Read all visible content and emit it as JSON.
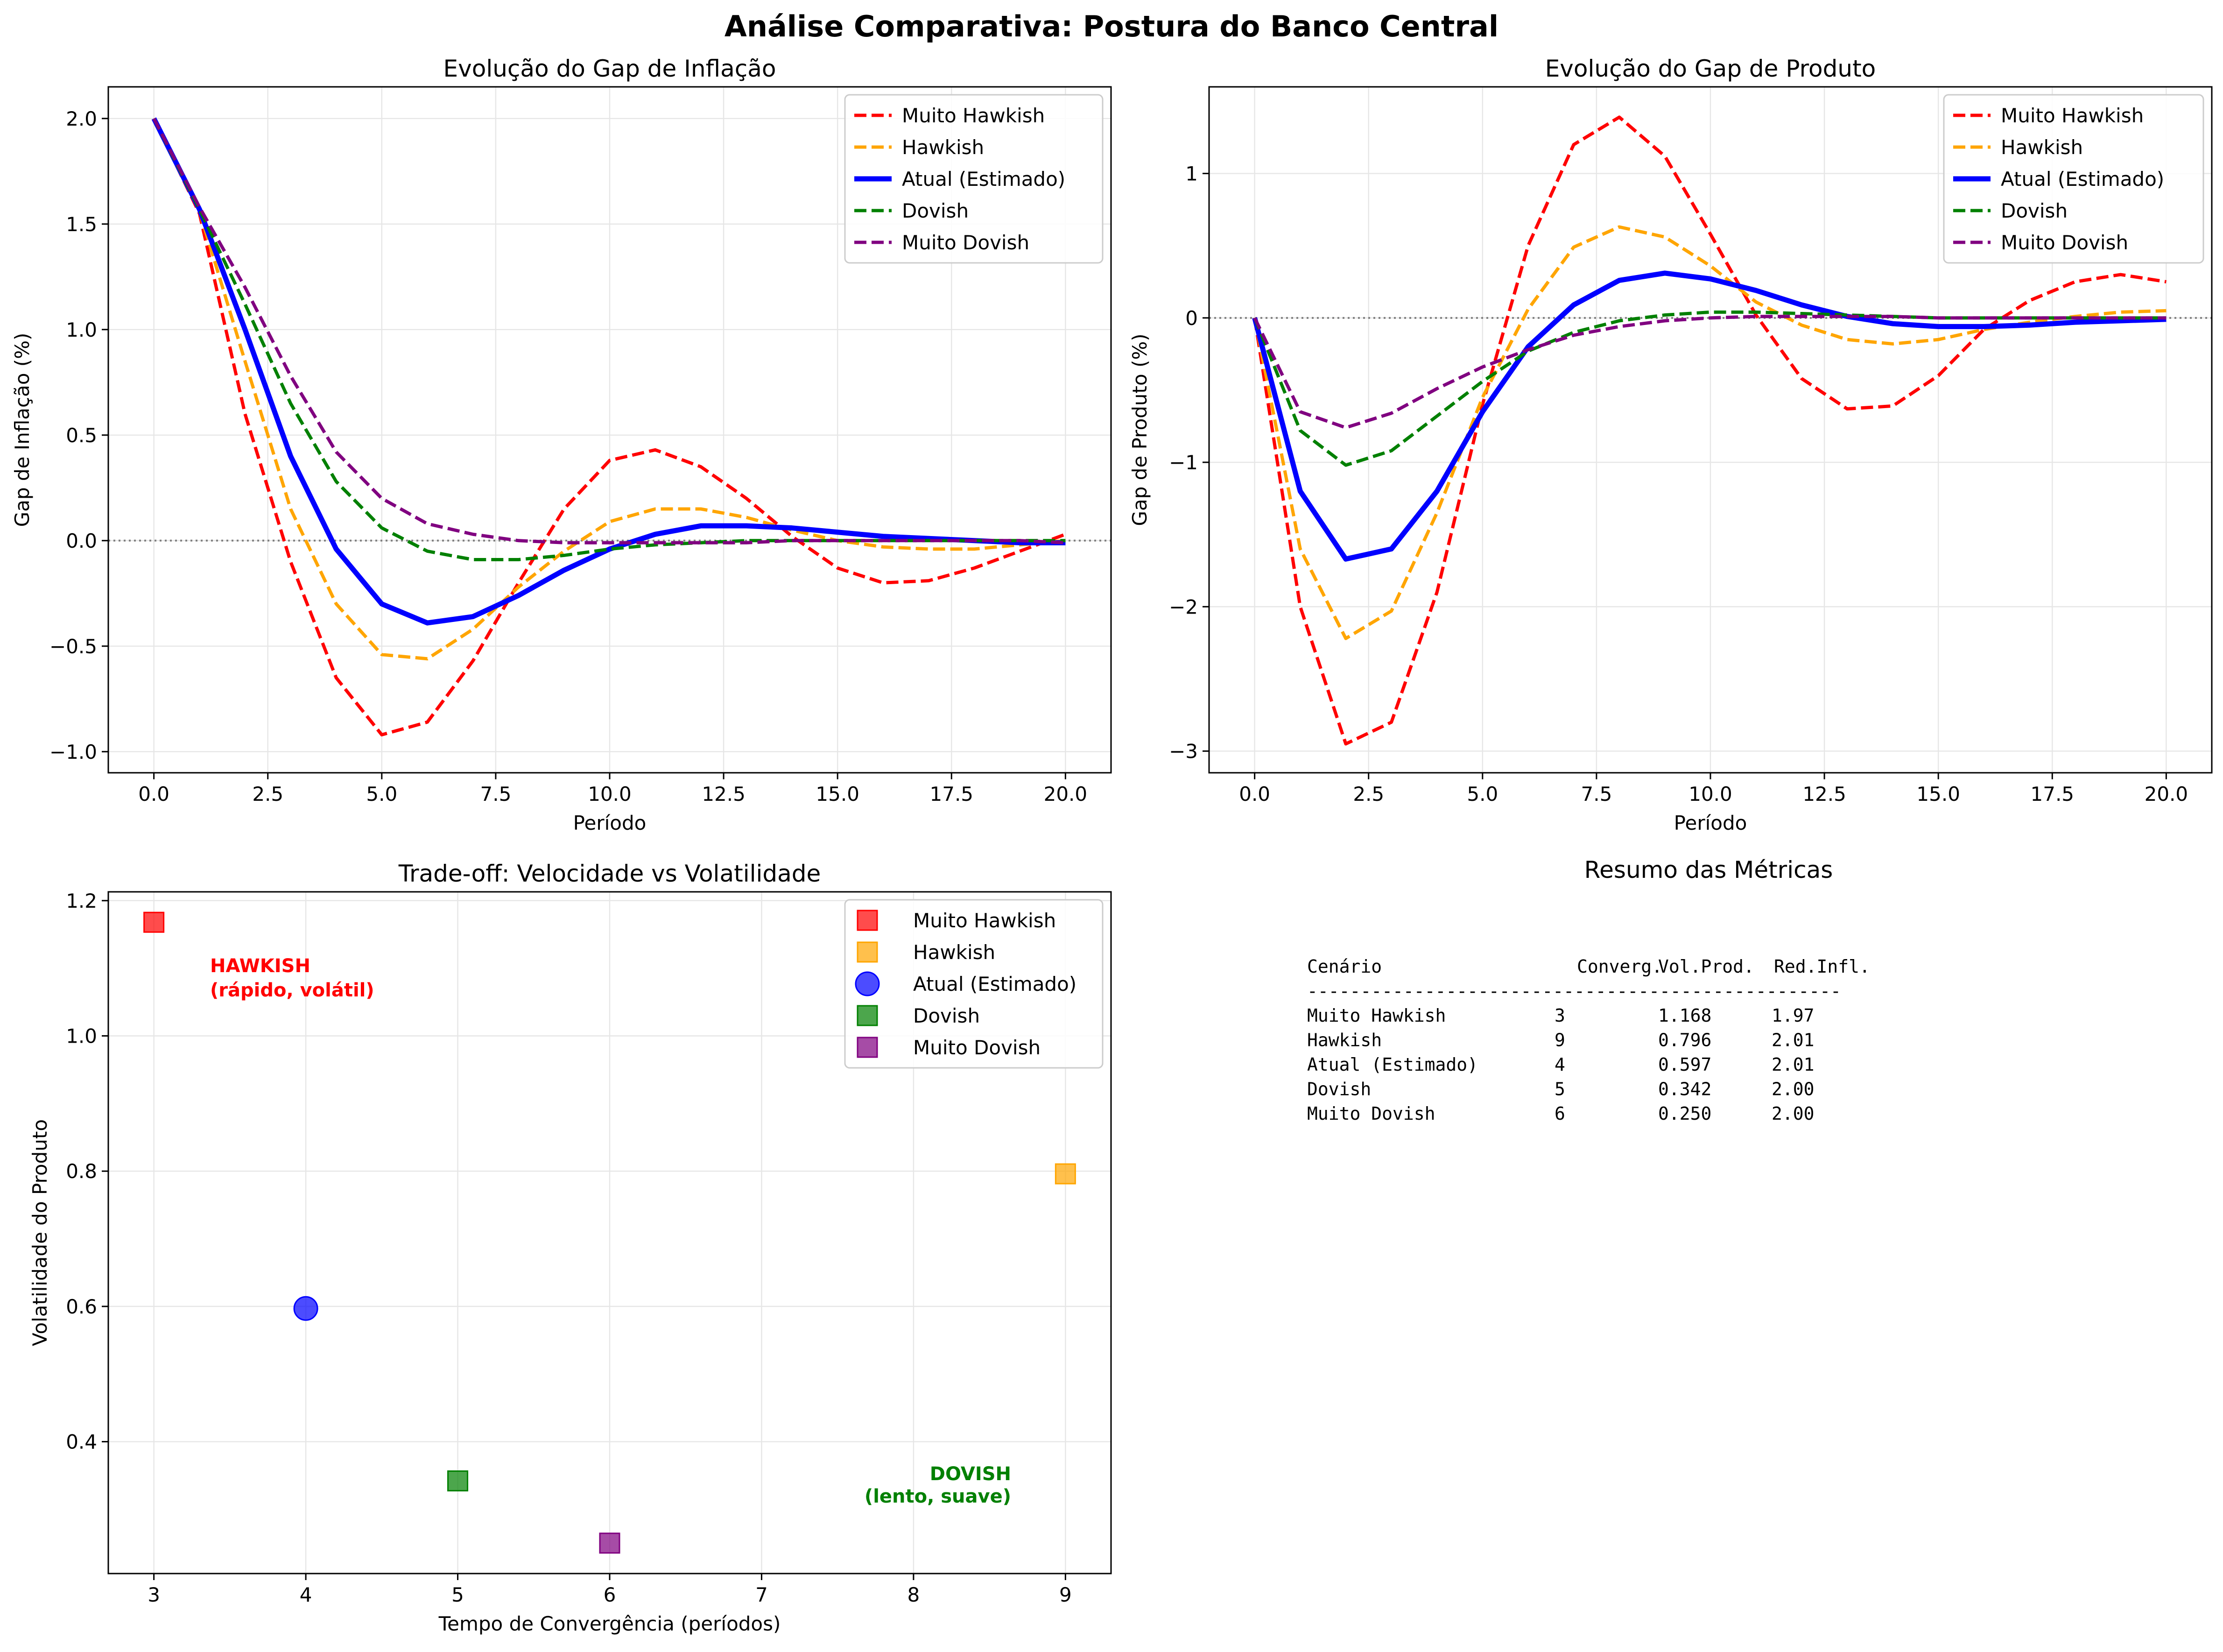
{
  "figure_title": "Análise Comparativa: Postura do Banco Central",
  "colors": {
    "muito_hawkish": "#ff0000",
    "hawkish": "#ffa500",
    "atual": "#0000ff",
    "dovish": "#008000",
    "muito_dovish": "#800080",
    "zero_line": "#808080",
    "grid": "#e6e6e6"
  },
  "chart_data": [
    {
      "id": "inflation",
      "type": "line",
      "title": "Evolução do Gap de Inflação",
      "xlabel": "Período",
      "ylabel": "Gap de Inflação (%)",
      "xlim": [
        -1,
        21
      ],
      "ylim": [
        -1.1,
        2.15
      ],
      "xticks": [
        0,
        2.5,
        5,
        7.5,
        10,
        12.5,
        15,
        17.5,
        20
      ],
      "xtick_labels": [
        "0.0",
        "2.5",
        "5.0",
        "7.5",
        "10.0",
        "12.5",
        "15.0",
        "17.5",
        "20.0"
      ],
      "yticks": [
        -1,
        -0.5,
        0,
        0.5,
        1,
        1.5,
        2
      ],
      "ytick_labels": [
        "−1.0",
        "−0.5",
        "0.0",
        "0.5",
        "1.0",
        "1.5",
        "2.0"
      ],
      "zero_line": 0,
      "grid": true,
      "legend_position": "top-right",
      "x": [
        0,
        1,
        2,
        3,
        4,
        5,
        6,
        7,
        8,
        9,
        10,
        11,
        12,
        13,
        14,
        15,
        16,
        17,
        18,
        19,
        20
      ],
      "series": [
        {
          "name": "Muito Hawkish",
          "key": "muito_hawkish",
          "style": "dashed",
          "values": [
            2.0,
            1.55,
            0.6,
            -0.1,
            -0.65,
            -0.92,
            -0.86,
            -0.57,
            -0.2,
            0.15,
            0.38,
            0.43,
            0.35,
            0.2,
            0.02,
            -0.13,
            -0.2,
            -0.19,
            -0.13,
            -0.05,
            0.03
          ]
        },
        {
          "name": "Hawkish",
          "key": "hawkish",
          "style": "dashed",
          "values": [
            2.0,
            1.56,
            0.85,
            0.15,
            -0.3,
            -0.54,
            -0.56,
            -0.42,
            -0.22,
            -0.05,
            0.09,
            0.15,
            0.15,
            0.11,
            0.05,
            0.0,
            -0.03,
            -0.04,
            -0.04,
            -0.02,
            0.0
          ]
        },
        {
          "name": "Atual (Estimado)",
          "key": "atual",
          "style": "solid",
          "values": [
            2.0,
            1.57,
            1.0,
            0.4,
            -0.04,
            -0.3,
            -0.39,
            -0.36,
            -0.26,
            -0.14,
            -0.04,
            0.03,
            0.07,
            0.07,
            0.06,
            0.04,
            0.02,
            0.01,
            0.0,
            -0.01,
            -0.01
          ]
        },
        {
          "name": "Dovish",
          "key": "dovish",
          "style": "dashed",
          "values": [
            2.0,
            1.57,
            1.12,
            0.65,
            0.28,
            0.06,
            -0.05,
            -0.09,
            -0.09,
            -0.07,
            -0.04,
            -0.02,
            -0.01,
            0.0,
            0.0,
            0.0,
            0.0,
            0.0,
            0.0,
            0.0,
            0.0
          ]
        },
        {
          "name": "Muito Dovish",
          "key": "muito_dovish",
          "style": "dashed",
          "values": [
            2.0,
            1.58,
            1.2,
            0.78,
            0.42,
            0.2,
            0.08,
            0.03,
            0.0,
            -0.01,
            -0.01,
            -0.01,
            -0.01,
            -0.01,
            0.0,
            0.0,
            0.0,
            0.0,
            0.0,
            0.0,
            -0.01
          ]
        }
      ]
    },
    {
      "id": "output",
      "type": "line",
      "title": "Evolução do Gap de Produto",
      "xlabel": "Período",
      "ylabel": "Gap de Produto (%)",
      "xlim": [
        -1,
        21
      ],
      "ylim": [
        -3.15,
        1.6
      ],
      "xticks": [
        0,
        2.5,
        5,
        7.5,
        10,
        12.5,
        15,
        17.5,
        20
      ],
      "xtick_labels": [
        "0.0",
        "2.5",
        "5.0",
        "7.5",
        "10.0",
        "12.5",
        "15.0",
        "17.5",
        "20.0"
      ],
      "yticks": [
        -3,
        -2,
        -1,
        0,
        1
      ],
      "ytick_labels": [
        "−3",
        "−2",
        "−1",
        "0",
        "1"
      ],
      "zero_line": 0,
      "grid": true,
      "legend_position": "top-right",
      "x": [
        0,
        1,
        2,
        3,
        4,
        5,
        6,
        7,
        8,
        9,
        10,
        11,
        12,
        13,
        14,
        15,
        16,
        17,
        18,
        19,
        20
      ],
      "series": [
        {
          "name": "Muito Hawkish",
          "key": "muito_hawkish",
          "style": "dashed",
          "values": [
            0.0,
            -2.0,
            -2.95,
            -2.8,
            -1.9,
            -0.6,
            0.5,
            1.2,
            1.39,
            1.12,
            0.58,
            0.02,
            -0.42,
            -0.63,
            -0.61,
            -0.4,
            -0.08,
            0.12,
            0.25,
            0.3,
            0.25
          ]
        },
        {
          "name": "Hawkish",
          "key": "hawkish",
          "style": "dashed",
          "values": [
            0.0,
            -1.6,
            -2.22,
            -2.03,
            -1.35,
            -0.55,
            0.06,
            0.49,
            0.63,
            0.56,
            0.36,
            0.11,
            -0.05,
            -0.15,
            -0.18,
            -0.15,
            -0.08,
            -0.03,
            0.01,
            0.04,
            0.05
          ]
        },
        {
          "name": "Atual (Estimado)",
          "key": "atual",
          "style": "solid",
          "values": [
            0.0,
            -1.2,
            -1.67,
            -1.6,
            -1.2,
            -0.65,
            -0.2,
            0.09,
            0.26,
            0.31,
            0.27,
            0.19,
            0.09,
            0.01,
            -0.04,
            -0.06,
            -0.06,
            -0.05,
            -0.03,
            -0.02,
            -0.01
          ]
        },
        {
          "name": "Dovish",
          "key": "dovish",
          "style": "dashed",
          "values": [
            0.0,
            -0.78,
            -1.02,
            -0.92,
            -0.68,
            -0.44,
            -0.23,
            -0.1,
            -0.02,
            0.02,
            0.04,
            0.04,
            0.03,
            0.02,
            0.01,
            0.0,
            0.0,
            0.0,
            0.0,
            0.0,
            0.0
          ]
        },
        {
          "name": "Muito Dovish",
          "key": "muito_dovish",
          "style": "dashed",
          "values": [
            0.0,
            -0.65,
            -0.76,
            -0.66,
            -0.49,
            -0.34,
            -0.22,
            -0.12,
            -0.06,
            -0.02,
            0.0,
            0.01,
            0.01,
            0.01,
            0.01,
            0.0,
            0.0,
            0.0,
            0.0,
            0.0,
            0.0
          ]
        }
      ]
    },
    {
      "id": "tradeoff",
      "type": "scatter",
      "title": "Trade-off: Velocidade vs Volatilidade",
      "xlabel": "Tempo de Convergência (períodos)",
      "ylabel": "Volatilidade do Produto",
      "xlim": [
        2.7,
        9.3
      ],
      "ylim": [
        0.205,
        1.213
      ],
      "xticks": [
        3,
        4,
        5,
        6,
        7,
        8,
        9
      ],
      "xtick_labels": [
        "3",
        "4",
        "5",
        "6",
        "7",
        "8",
        "9"
      ],
      "yticks": [
        0.4,
        0.6,
        0.8,
        1.0,
        1.2
      ],
      "ytick_labels": [
        "0.4",
        "0.6",
        "0.8",
        "1.0",
        "1.2"
      ],
      "grid": true,
      "legend_position": "top-right",
      "points": [
        {
          "name": "Muito Hawkish",
          "key": "muito_hawkish",
          "marker": "square",
          "x": 3,
          "y": 1.168
        },
        {
          "name": "Hawkish",
          "key": "hawkish",
          "marker": "square",
          "x": 9,
          "y": 0.796
        },
        {
          "name": "Atual (Estimado)",
          "key": "atual",
          "marker": "circle",
          "x": 4,
          "y": 0.597
        },
        {
          "name": "Dovish",
          "key": "dovish",
          "marker": "square",
          "x": 5,
          "y": 0.342
        },
        {
          "name": "Muito Dovish",
          "key": "muito_dovish",
          "marker": "square",
          "x": 6,
          "y": 0.25
        }
      ],
      "annotations": [
        {
          "line1": "HAWKISH",
          "line2": "(rápido, volátil)",
          "key": "muito_hawkish"
        },
        {
          "line1": "DOVISH",
          "line2": "(lento, suave)",
          "key": "dovish"
        }
      ]
    }
  ],
  "summary": {
    "title": "Resumo das Métricas",
    "header": {
      "scenario": "Cenário",
      "converg": "Converg.",
      "vol_prod": "Vol.Prod.",
      "red_infl": "Red.Infl."
    },
    "separator": "--------------------------------------------------",
    "rows": [
      {
        "scenario": "Muito Hawkish",
        "converg": "3",
        "vol_prod": "1.168",
        "red_infl": "1.97"
      },
      {
        "scenario": "Hawkish",
        "converg": "9",
        "vol_prod": "0.796",
        "red_infl": "2.01"
      },
      {
        "scenario": "Atual (Estimado)",
        "converg": "4",
        "vol_prod": "0.597",
        "red_infl": "2.01"
      },
      {
        "scenario": "Dovish",
        "converg": "5",
        "vol_prod": "0.342",
        "red_infl": "2.00"
      },
      {
        "scenario": "Muito Dovish",
        "converg": "6",
        "vol_prod": "0.250",
        "red_infl": "2.00"
      }
    ]
  }
}
